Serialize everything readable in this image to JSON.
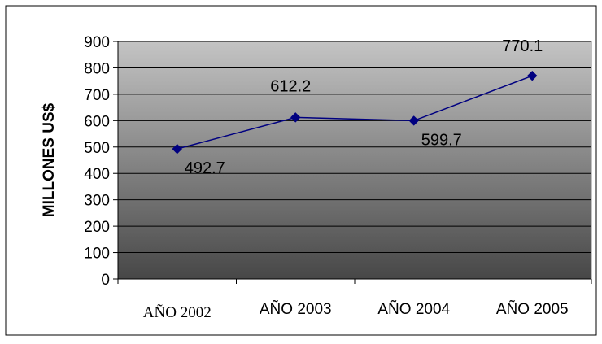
{
  "chart_data": {
    "type": "line",
    "categories": [
      "AÑO 2002",
      "AÑO 2003",
      "AÑO 2004",
      "AÑO 2005"
    ],
    "series": [
      {
        "values": [
          492.7,
          612.2,
          599.7,
          770.1
        ],
        "color": "#000080"
      }
    ],
    "data_labels": [
      "492.7",
      "612.2",
      "599.7",
      "770.1"
    ],
    "ylabel": "MILLONES US$",
    "ylim": [
      0,
      900
    ],
    "yticks": [
      0,
      100,
      200,
      300,
      400,
      500,
      600,
      700,
      800,
      900
    ],
    "grid": true,
    "legend": "none",
    "plot_background": "gradient light gray (top) to dark gray (bottom)",
    "colors": {
      "line": "#000080",
      "marker": "#000080",
      "gradient_top": "#c4c4c4",
      "gradient_bottom": "#474747"
    }
  }
}
